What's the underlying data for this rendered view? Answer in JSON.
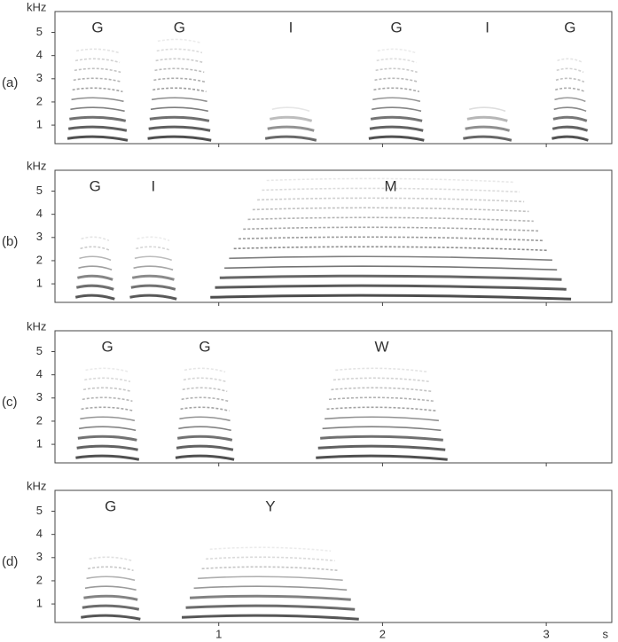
{
  "chart_data": [
    {
      "type": "spectrogram",
      "panel": "(a)",
      "ylabel": "kHz",
      "xlim": [
        0,
        3.4
      ],
      "xticks": [
        1,
        2,
        3
      ],
      "ylim": [
        0.2,
        5.9
      ],
      "yticks": [
        1,
        2,
        3,
        4,
        5
      ],
      "syllables": [
        {
          "label": "G",
          "start": 0.07,
          "end": 0.45,
          "fmax": 4.6
        },
        {
          "label": "G",
          "start": 0.56,
          "end": 0.96,
          "fmax": 4.8
        },
        {
          "label": "I",
          "start": 1.27,
          "end": 1.61,
          "fmax": 1.8
        },
        {
          "label": "G",
          "start": 1.91,
          "end": 2.26,
          "fmax": 4.3
        },
        {
          "label": "I",
          "start": 2.48,
          "end": 2.8,
          "fmax": 1.9
        },
        {
          "label": "G",
          "start": 3.03,
          "end": 3.26,
          "fmax": 4.1
        }
      ]
    },
    {
      "type": "spectrogram",
      "panel": "(b)",
      "ylabel": "kHz",
      "xlim": [
        0,
        3.4
      ],
      "xticks": [
        1,
        2,
        3
      ],
      "ylim": [
        0.2,
        5.9
      ],
      "yticks": [
        1,
        2,
        3,
        4,
        5
      ],
      "syllables": [
        {
          "label": "G",
          "start": 0.12,
          "end": 0.37,
          "fmax": 3.2
        },
        {
          "label": "I",
          "start": 0.45,
          "end": 0.75,
          "fmax": 3.0
        },
        {
          "label": "M",
          "start": 0.92,
          "end": 3.18,
          "fmax": 5.8
        }
      ]
    },
    {
      "type": "spectrogram",
      "panel": "(c)",
      "ylabel": "kHz",
      "xlim": [
        0,
        3.4
      ],
      "xticks": [
        1,
        2,
        3
      ],
      "ylim": [
        0.2,
        5.9
      ],
      "yticks": [
        1,
        2,
        3,
        4,
        5
      ],
      "syllables": [
        {
          "label": "G",
          "start": 0.12,
          "end": 0.52,
          "fmax": 4.4
        },
        {
          "label": "G",
          "start": 0.73,
          "end": 1.1,
          "fmax": 4.5
        },
        {
          "label": "W",
          "start": 1.58,
          "end": 2.41,
          "fmax": 4.6
        }
      ]
    },
    {
      "type": "spectrogram",
      "panel": "(d)",
      "ylabel": "kHz",
      "xlabel": "s",
      "xlim": [
        0,
        3.4
      ],
      "xticks": [
        1,
        2,
        3
      ],
      "ylim": [
        0.2,
        5.9
      ],
      "yticks": [
        1,
        2,
        3,
        4,
        5
      ],
      "syllables": [
        {
          "label": "G",
          "start": 0.15,
          "end": 0.53,
          "fmax": 3.3
        },
        {
          "label": "Y",
          "start": 0.75,
          "end": 1.88,
          "fmax": 3.4
        }
      ]
    }
  ]
}
